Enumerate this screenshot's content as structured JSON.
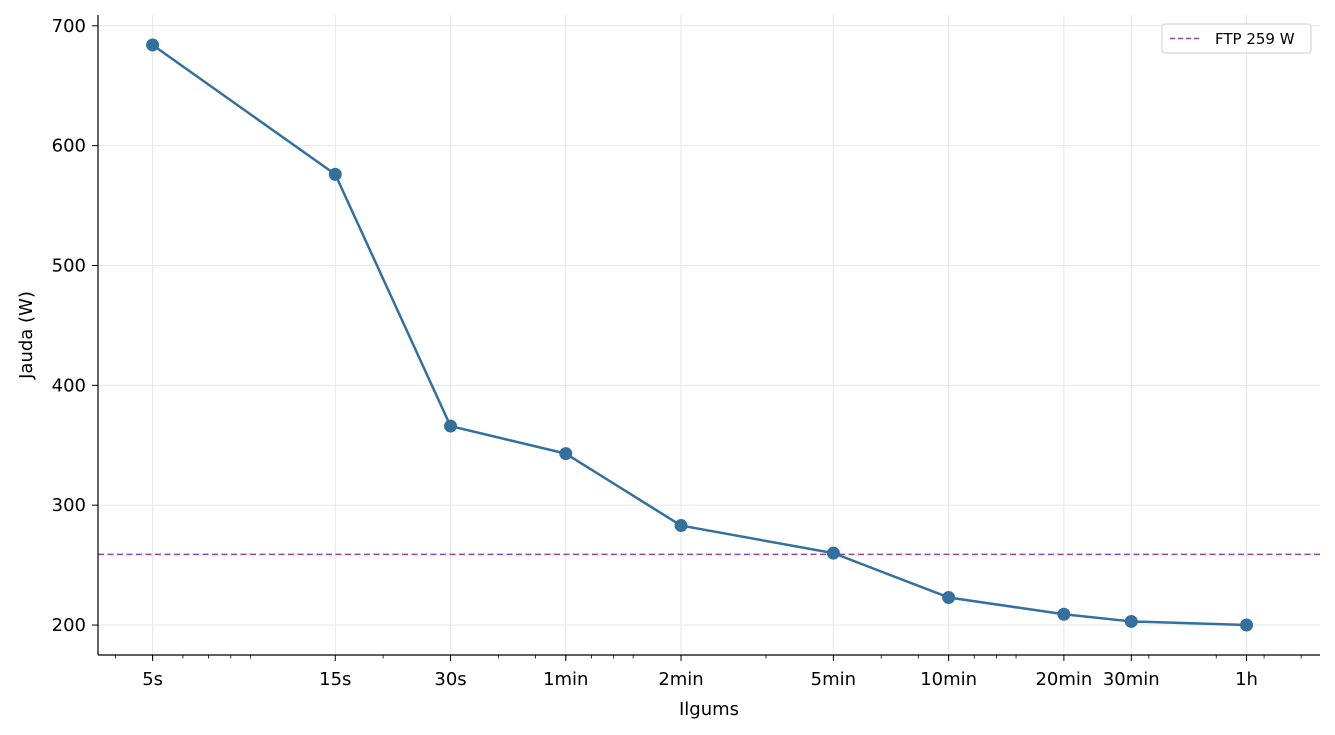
{
  "chart_data": {
    "type": "line",
    "x_scale": "log",
    "x_unit": "seconds",
    "x": [
      5,
      15,
      30,
      60,
      120,
      300,
      600,
      1200,
      1800,
      3600
    ],
    "xticklabels": [
      "5s",
      "15s",
      "30s",
      "1min",
      "2min",
      "5min",
      "10min",
      "20min",
      "30min",
      "1h"
    ],
    "series": [
      {
        "values": [
          684,
          576,
          366,
          343,
          283,
          260,
          223,
          209,
          203,
          200
        ],
        "color": "#33709e"
      }
    ],
    "reference_line": {
      "label": "FTP 259 W",
      "value": 259,
      "color": "#8e44ad",
      "style": "dashed"
    },
    "xlabel": "Ilgums",
    "ylabel": "Jauda (W)",
    "xlim": [
      3.6,
      5600
    ],
    "ylim": [
      175,
      709
    ],
    "yticks": [
      200,
      300,
      400,
      500,
      600,
      700
    ],
    "grid": true,
    "legend_position": "top-right"
  }
}
